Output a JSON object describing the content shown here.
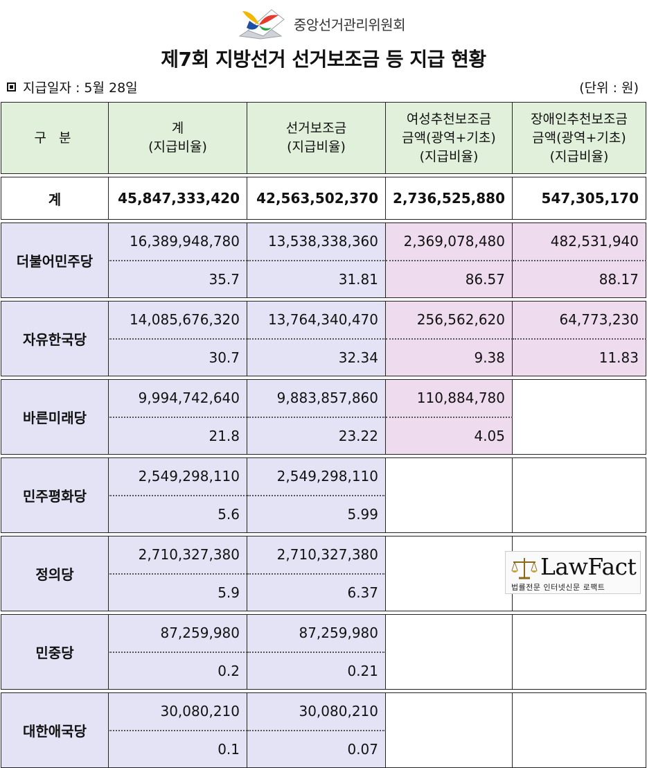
{
  "header": {
    "org_name": "중앙선거관리위원회",
    "title": "제7회 지방선거 선거보조금 등 지급 현황",
    "pay_date": "지급일자 : 5월 28일",
    "unit": "(단위 : 원)"
  },
  "columns": {
    "label": "구 분",
    "total": [
      "계",
      "(지급비율)"
    ],
    "subsidy": [
      "선거보조금",
      "(지급비율)"
    ],
    "women": [
      "여성추천보조금",
      "금액(광역+기초)",
      "(지급비율)"
    ],
    "disabled": [
      "장애인추천보조금",
      "금액(광역+기초)",
      "(지급비율)"
    ]
  },
  "totals": {
    "label": "계",
    "total": "45,847,333,420",
    "subsidy": "42,563,502,370",
    "women": "2,736,525,880",
    "disabled": "547,305,170"
  },
  "rows": [
    {
      "party": "더불어민주당",
      "total": "16,389,948,780",
      "total_ratio": "35.7",
      "subsidy": "13,538,338,360",
      "subsidy_ratio": "31.81",
      "women": "2,369,078,480",
      "women_ratio": "86.57",
      "disabled": "482,531,940",
      "disabled_ratio": "88.17"
    },
    {
      "party": "자유한국당",
      "total": "14,085,676,320",
      "total_ratio": "30.7",
      "subsidy": "13,764,340,470",
      "subsidy_ratio": "32.34",
      "women": "256,562,620",
      "women_ratio": "9.38",
      "disabled": "64,773,230",
      "disabled_ratio": "11.83"
    },
    {
      "party": "바른미래당",
      "total": "9,994,742,640",
      "total_ratio": "21.8",
      "subsidy": "9,883,857,860",
      "subsidy_ratio": "23.22",
      "women": "110,884,780",
      "women_ratio": "4.05"
    },
    {
      "party": "민주평화당",
      "total": "2,549,298,110",
      "total_ratio": "5.6",
      "subsidy": "2,549,298,110",
      "subsidy_ratio": "5.99"
    },
    {
      "party": "정의당",
      "total": "2,710,327,380",
      "total_ratio": "5.9",
      "subsidy": "2,710,327,380",
      "subsidy_ratio": "6.37"
    },
    {
      "party": "민중당",
      "total": "87,259,980",
      "total_ratio": "0.2",
      "subsidy": "87,259,980",
      "subsidy_ratio": "0.21"
    },
    {
      "party": "대한애국당",
      "total": "30,080,210",
      "total_ratio": "0.1",
      "subsidy": "30,080,210",
      "subsidy_ratio": "0.07"
    }
  ],
  "watermark": {
    "brand": "LawFact",
    "tagline": "법률전문 인터넷신문 로팩트"
  },
  "colors": {
    "header_bg": "#e1f0db",
    "party_bg": "#e3e3f5",
    "women_disabled_bg": "#eedbee"
  }
}
